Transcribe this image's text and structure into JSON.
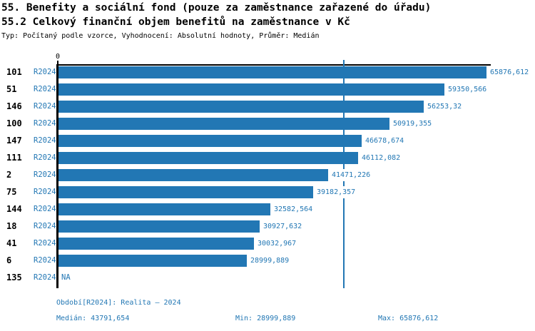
{
  "header": {
    "title": "55. Benefity a sociální fond (pouze za zaměstnance zařazené do úřadu)",
    "subtitle": "55.2 Celkový finanční objem benefitů na zaměstnance v Kč",
    "meta": "Typ: Počítaný podle vzorce, Vyhodnocení: Absolutní hodnoty, Průměr: Medián"
  },
  "colors": {
    "accent": "#2277b4",
    "axis": "#000000",
    "background": "#ffffff"
  },
  "chart_data": {
    "type": "bar",
    "orientation": "horizontal",
    "categories": [
      "101",
      "51",
      "146",
      "100",
      "147",
      "111",
      "2",
      "75",
      "144",
      "18",
      "41",
      "6",
      "135"
    ],
    "period_label": "R2024",
    "values": [
      65876.612,
      59350.566,
      56253.32,
      50919.355,
      46678.674,
      46112.082,
      41471.226,
      39182.357,
      32582.564,
      30927.632,
      30032.967,
      28999.889,
      null
    ],
    "value_labels": [
      "65876,612",
      "59350,566",
      "56253,32",
      "50919,355",
      "46678,674",
      "46112,082",
      "41471,226",
      "39182,357",
      "32582,564",
      "30927,632",
      "30032,967",
      "28999,889",
      "NA"
    ],
    "na_label": "NA",
    "xlim": [
      0,
      65876.612
    ],
    "x_tick_labels": [
      "0"
    ],
    "median_value": 43791.654,
    "grid": false,
    "legend": false
  },
  "footer": {
    "period_info": "Období[R2024]: Realita – 2024",
    "median": "Medián: 43791,654",
    "min": "Min: 28999,889",
    "max": "Max: 65876,612"
  }
}
